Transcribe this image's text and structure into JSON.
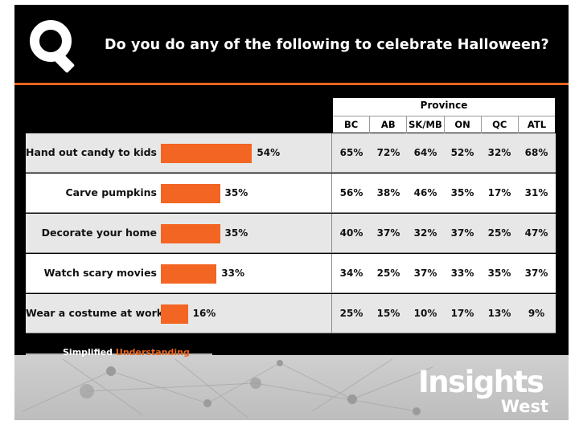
{
  "header": {
    "title": "Do you do any of the following to celebrate Halloween?",
    "logo_icon": "magnifier-q-logo-icon"
  },
  "colors": {
    "background": "#000000",
    "accent": "#e8641b",
    "bar": "#f26522",
    "row_shaded": "#e7e7e7"
  },
  "footer": {
    "tagline_white": "Simplified ",
    "tagline_orange": "Understanding",
    "brand_main": "Insights",
    "brand_sub": "West"
  },
  "chart_data": {
    "type": "bar",
    "orientation": "horizontal",
    "title": "Do you do any of the following to celebrate Halloween?",
    "categories": [
      "Hand out candy to kids",
      "Carve pumpkins",
      "Decorate your home",
      "Watch scary movies",
      "Wear a costume at work"
    ],
    "values": [
      54,
      35,
      35,
      33,
      16
    ],
    "value_labels": [
      "54%",
      "35%",
      "35%",
      "33%",
      "16%"
    ],
    "unit": "%",
    "table": {
      "group_header": "Province",
      "columns": [
        "BC",
        "AB",
        "SK/MB",
        "ON",
        "QC",
        "ATL"
      ],
      "rows": [
        [
          "65%",
          "72%",
          "64%",
          "52%",
          "32%",
          "68%"
        ],
        [
          "56%",
          "38%",
          "46%",
          "35%",
          "17%",
          "31%"
        ],
        [
          "40%",
          "37%",
          "32%",
          "37%",
          "25%",
          "47%"
        ],
        [
          "34%",
          "25%",
          "37%",
          "33%",
          "35%",
          "37%"
        ],
        [
          "25%",
          "15%",
          "10%",
          "17%",
          "13%",
          "9%"
        ]
      ]
    }
  }
}
